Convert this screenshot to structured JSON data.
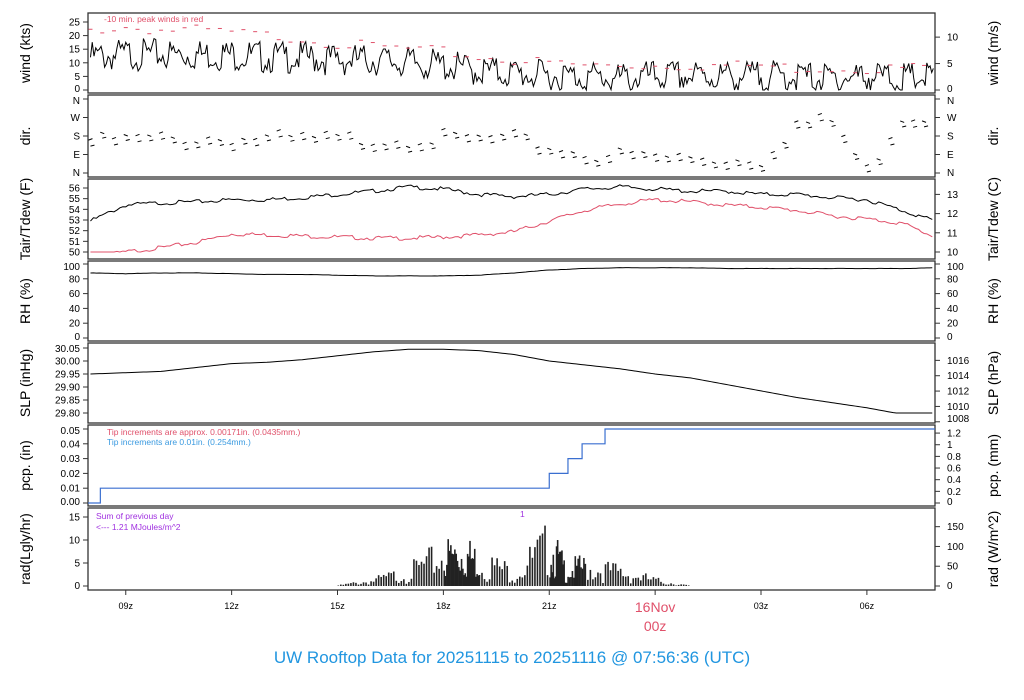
{
  "chart_data": {
    "type": "line",
    "title": "UW Rooftop Data for 20251115  to  20251116 @ 07:56:36  (UTC)",
    "x_ticks": [
      "09z",
      "12z",
      "15z",
      "18z",
      "21z",
      "00z",
      "03z",
      "06z"
    ],
    "x_tick_hours": [
      1.07,
      4.07,
      7.07,
      10.07,
      13.07,
      16.07,
      19.07,
      22.07
    ],
    "date_marker": {
      "label": "16Nov",
      "tick": "00z",
      "color": "#e0506a"
    },
    "hours": [
      0.07,
      1.07,
      2.07,
      3.07,
      4.07,
      5.07,
      6.07,
      7.07,
      8.07,
      9.07,
      10.07,
      11.07,
      12.07,
      13.07,
      14.07,
      15.07,
      16.07,
      17.07,
      18.07,
      19.07,
      20.07,
      21.07,
      22.07,
      23.07,
      24
    ],
    "panels": [
      {
        "id": "wind",
        "ylabel": "wind (kts)",
        "ylabel_right": "wind (m/s)",
        "ylim": [
          0,
          27
        ],
        "left_ticks": [
          0,
          5,
          10,
          15,
          20,
          25
        ],
        "right_ticks": [
          0,
          5,
          10
        ],
        "annotation": "-10 min. peak winds in red",
        "series": [
          {
            "name": "wind speed",
            "color": "#000000",
            "values": [
              12,
              13,
              13,
              13,
              13,
              12,
              12,
              11,
              11,
              10,
              9,
              7,
              6,
              5,
              5,
              4,
              5,
              5,
              5,
              5,
              5,
              4,
              5,
              4,
              5
            ]
          },
          {
            "name": "10 min peak",
            "color": "#e0506a",
            "style": "dash",
            "values": [
              22,
              23,
              22,
              22,
              21,
              20,
              19,
              17,
              16,
              15,
              14,
              12,
              11,
              10,
              9,
              9,
              9,
              9,
              9,
              9,
              8,
              8,
              8,
              8,
              9
            ]
          }
        ]
      },
      {
        "id": "dir",
        "ylabel": "dir.",
        "ylabel_right": "dir.",
        "ylim": [
          0,
          360
        ],
        "left_ticks": [
          "N",
          "E",
          "S",
          "W",
          "N"
        ],
        "right_ticks": [
          "N",
          "E",
          "S",
          "W",
          "N"
        ],
        "series": [
          {
            "name": "direction",
            "color": "#000000",
            "style": "dash",
            "values": [
              180,
              185,
              188,
              190,
              190,
              188,
              185,
              186,
              188,
              190,
              190,
              188,
              185,
              150,
              115,
              110,
              100,
              95,
              90,
              88,
              260,
              275,
              30,
              300,
              290
            ]
          }
        ]
      },
      {
        "id": "temp",
        "ylabel": "Tair/Tdew (F)",
        "ylabel_right": "Tair/Tdew (C)",
        "ylim": [
          49.6,
          56.9
        ],
        "left_ticks": [
          50,
          51,
          52,
          53,
          54,
          55,
          56
        ],
        "right_ticks": [
          10,
          11,
          12,
          13
        ],
        "series": [
          {
            "name": "Tair",
            "color": "#000000",
            "values": [
              53,
              54.5,
              54.7,
              54.8,
              55,
              55,
              55.2,
              55.5,
              55.8,
              56.2,
              56,
              55.5,
              55.3,
              55.5,
              56,
              56.2,
              56,
              55.8,
              55.8,
              55.5,
              55.5,
              55.2,
              55,
              54,
              53
            ]
          },
          {
            "name": "Tdew",
            "color": "#e0506a",
            "values": [
              49.6,
              50.1,
              50.5,
              51,
              51.8,
              51.7,
              51.6,
              51.5,
              51.4,
              51.4,
              51.5,
              51.7,
              52,
              53,
              54,
              54.6,
              55,
              54.8,
              54.5,
              54.3,
              54,
              53.5,
              53.2,
              52.8,
              51.5
            ]
          }
        ]
      },
      {
        "id": "rh",
        "ylabel": "RH (%)",
        "ylabel_right": "RH (%)",
        "ylim": [
          0,
          100
        ],
        "left_ticks": [
          0,
          20,
          40,
          60,
          80,
          100
        ],
        "right_ticks": [
          0,
          20,
          40,
          60,
          80,
          100
        ],
        "series": [
          {
            "name": "RH",
            "color": "#000000",
            "values": [
              88,
              87,
              88,
              88,
              87,
              86,
              86,
              85,
              84,
              84,
              84,
              85,
              88,
              92,
              94,
              95,
              95,
              95,
              94,
              94,
              94,
              94,
              94,
              94,
              95
            ]
          }
        ]
      },
      {
        "id": "slp",
        "ylabel": "SLP (inHg)",
        "ylabel_right": "SLP (hPa)",
        "ylim": [
          29.775,
          30.05
        ],
        "left_ticks": [
          "29.80",
          "29.85",
          "29.90",
          "29.95",
          "30.00",
          "30.05"
        ],
        "right_ticks": [
          1008,
          1010,
          1012,
          1014,
          1016
        ],
        "series": [
          {
            "name": "SLP",
            "color": "#000000",
            "values": [
              29.95,
              29.955,
              29.96,
              29.975,
              29.99,
              29.995,
              30.005,
              30.02,
              30.035,
              30.045,
              30.045,
              30.04,
              30.025,
              30.0,
              29.985,
              29.97,
              29.95,
              29.935,
              29.91,
              29.885,
              29.86,
              29.84,
              29.82,
              29.795,
              29.778
            ]
          }
        ]
      },
      {
        "id": "pcp",
        "ylabel": "pcp. (in)",
        "ylabel_right": "pcp. (mm)",
        "ylim": [
          0,
          0.05
        ],
        "left_ticks": [
          "0.00",
          "0.01",
          "0.02",
          "0.03",
          "0.04",
          "0.05"
        ],
        "right_ticks": [
          0,
          0.2,
          0.4,
          0.6,
          0.8,
          1,
          1.2
        ],
        "annotation_red": "Tip increments are approx. 0.00171in. (0.0435mm.)",
        "annotation_blue": "Tip increments are 0.01in. (0.254mm.)",
        "steps": {
          "color": "#3a6fd0",
          "hours": [
            0,
            0.35,
            13.07,
            13.6,
            14.0,
            14.65,
            24
          ],
          "values": [
            0,
            0.01,
            0.02,
            0.03,
            0.04,
            0.05,
            0.05
          ]
        }
      },
      {
        "id": "rad",
        "ylabel": "rad(Lgly/hr)",
        "ylabel_right": "rad (W/m^2)",
        "ylim": [
          0,
          15
        ],
        "left_ticks": [
          0,
          5,
          10,
          15
        ],
        "right_ticks": [
          0,
          50,
          100,
          150
        ],
        "annotation": "Sum of previous day",
        "annotation2": "<--- 1.21 MJoules/m^2",
        "marker": "1",
        "bars": {
          "color": "#222222",
          "hours": [
            7.07,
            8.07,
            9.07,
            10.07,
            10.6,
            11.07,
            12.07,
            13.07,
            13.5,
            14.07,
            15.07,
            16.07,
            17.07
          ],
          "values": [
            0.2,
            2,
            5,
            11,
            12,
            9,
            5,
            15,
            6,
            7,
            5,
            2,
            0
          ]
        }
      }
    ]
  }
}
